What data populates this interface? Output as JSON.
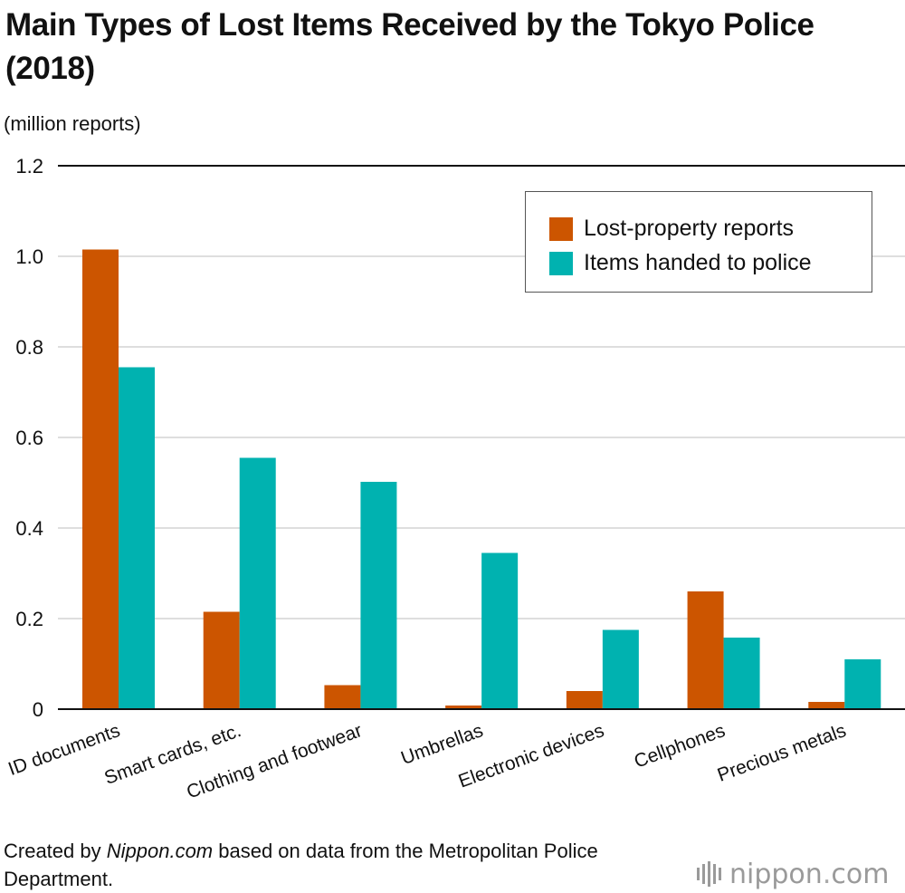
{
  "title": "Main Types of Lost Items Received by the Tokyo Police (2018)",
  "source": {
    "prefix": "Created by ",
    "site": "Nippon.com",
    "suffix": " based on data from the Metropolitan Police Department."
  },
  "logo": {
    "name": "nippon",
    "dot": ".",
    "tld": "com",
    "icon": "nippon-bars-logo"
  },
  "colors": {
    "lost_reports": "#cc5500",
    "handed_in": "#00b2b0",
    "grid": "#d3d3d3",
    "axis": "#111111"
  },
  "chart_data": {
    "type": "bar",
    "title": "Main Types of Lost Items Received by the Tokyo Police (2018)",
    "ylabel": "(million reports)",
    "xlabel": "",
    "ylim": [
      0,
      1.2
    ],
    "yticks": [
      {
        "value": 0,
        "label": "0"
      },
      {
        "value": 0.2,
        "label": "0.2"
      },
      {
        "value": 0.4,
        "label": "0.4"
      },
      {
        "value": 0.6,
        "label": "0.6"
      },
      {
        "value": 0.8,
        "label": "0.8"
      },
      {
        "value": 1.0,
        "label": "1.0"
      },
      {
        "value": 1.2,
        "label": "1.2"
      }
    ],
    "grid": true,
    "legend_position": "top-right",
    "categories": [
      "ID documents",
      "Smart cards, etc.",
      "Clothing and footwear",
      "Umbrellas",
      "Electronic devices",
      "Cellphones",
      "Precious metals"
    ],
    "series": [
      {
        "name": "Lost-property reports",
        "color": "#cc5500",
        "values": [
          1.015,
          0.215,
          0.053,
          0.008,
          0.04,
          0.26,
          0.016
        ]
      },
      {
        "name": "Items handed to police",
        "color": "#00b2b0",
        "values": [
          0.755,
          0.555,
          0.502,
          0.345,
          0.175,
          0.158,
          0.11
        ]
      }
    ]
  }
}
